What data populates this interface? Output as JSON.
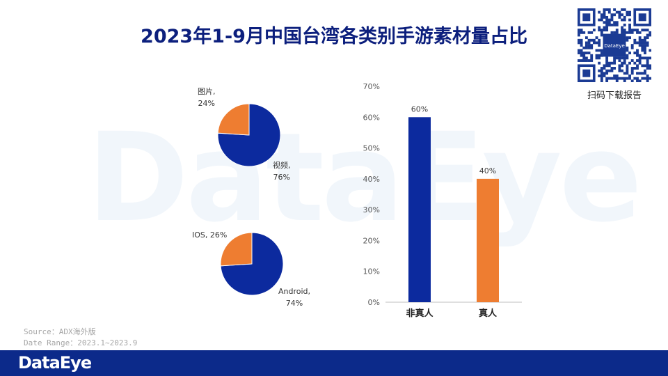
{
  "brand": {
    "watermark": "DataEye",
    "footer_logo": "DataEye",
    "qr_logo": "DataEye"
  },
  "header": {
    "title": "2023年1-9月中国台湾各类别手游素材量占比"
  },
  "qr": {
    "caption": "扫码下载报告"
  },
  "colors": {
    "primary": "#0c2a9e",
    "accent": "#ee7d31",
    "title": "#0c1f7d",
    "footer": "#0c2a8a"
  },
  "chart_data": [
    {
      "type": "pie",
      "slices": [
        {
          "label": "视频",
          "value": 76,
          "display": "76%",
          "color": "#0c2a9e"
        },
        {
          "label": "图片",
          "value": 24,
          "display": "24%",
          "color": "#ee7d31"
        }
      ]
    },
    {
      "type": "pie",
      "slices": [
        {
          "label": "Android",
          "value": 74,
          "display": "74%",
          "color": "#0c2a9e"
        },
        {
          "label": "IOS",
          "value": 26,
          "display": "26%",
          "color": "#ee7d31"
        }
      ]
    },
    {
      "type": "bar",
      "categories": [
        "非真人",
        "真人"
      ],
      "values": [
        60,
        40
      ],
      "data_labels": [
        "60%",
        "40%"
      ],
      "colors": [
        "#0c2a9e",
        "#ee7d31"
      ],
      "yticks": [
        "0%",
        "10%",
        "20%",
        "30%",
        "40%",
        "50%",
        "60%",
        "70%"
      ],
      "ylim": [
        0,
        70
      ],
      "grid": false
    }
  ],
  "footer": {
    "source": "Source：ADX海外版",
    "date_range": "Date Range：2023.1~2023.9"
  }
}
